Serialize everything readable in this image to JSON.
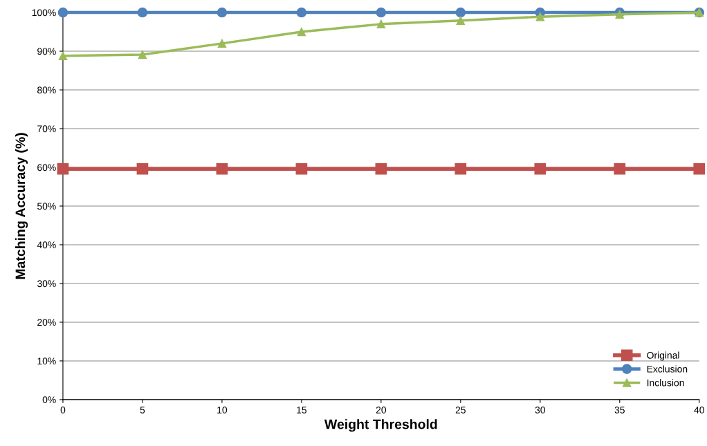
{
  "chart_data": {
    "type": "line",
    "xlabel": "Weight Threshold",
    "ylabel": "Matching Accuracy (%)",
    "x": [
      0,
      5,
      10,
      15,
      20,
      25,
      30,
      35,
      40
    ],
    "series": [
      {
        "name": "Original",
        "color": "#c0504d",
        "marker": "square",
        "values": [
          59.6,
          59.6,
          59.6,
          59.6,
          59.6,
          59.6,
          59.6,
          59.6,
          59.6
        ]
      },
      {
        "name": "Exclusion",
        "color": "#4f81bd",
        "marker": "circle",
        "values": [
          100,
          100,
          100,
          100,
          100,
          100,
          100,
          100,
          100
        ]
      },
      {
        "name": "Inclusion",
        "color": "#9bbb59",
        "marker": "triangle",
        "values": [
          88.8,
          89.1,
          92.0,
          95.0,
          97.0,
          97.9,
          98.9,
          99.5,
          100
        ]
      }
    ],
    "xlim": [
      0,
      40
    ],
    "xticks": [
      0,
      5,
      10,
      15,
      20,
      25,
      30,
      35,
      40
    ],
    "ylim": [
      0,
      100
    ],
    "yticks": [
      {
        "value": 0,
        "label": "0%"
      },
      {
        "value": 10,
        "label": "10%"
      },
      {
        "value": 20,
        "label": "20%"
      },
      {
        "value": 30,
        "label": "30%"
      },
      {
        "value": 40,
        "label": "40%"
      },
      {
        "value": 50,
        "label": "50%"
      },
      {
        "value": 60,
        "label": "60%"
      },
      {
        "value": 70,
        "label": "70%"
      },
      {
        "value": 80,
        "label": "80%"
      },
      {
        "value": 90,
        "label": "90%"
      },
      {
        "value": 100,
        "label": "100%"
      }
    ],
    "grid": "y",
    "legend": "bottom right",
    "line_style": "solid"
  }
}
